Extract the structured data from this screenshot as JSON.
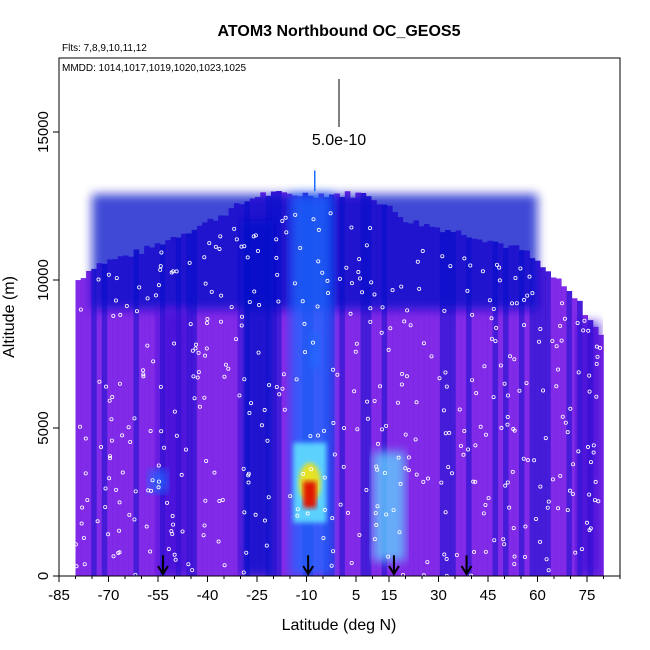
{
  "chart_data": {
    "type": "heatmap",
    "title": "ATOM3 Northbound OC_GEOS5",
    "flights_label": "Flts: 7,8,9,10,11,12",
    "dates_label": "MMDD: 1014,1017,1019,1020,1023,1025",
    "xlabel": "Latitude (deg N)",
    "ylabel": "Altitude (m)",
    "xlim": [
      -85,
      85
    ],
    "ylim": [
      0,
      17500
    ],
    "x_ticks": [
      -85,
      -70,
      -55,
      -40,
      -25,
      -10,
      5,
      15,
      30,
      45,
      60,
      75
    ],
    "y_ticks": [
      0,
      5000,
      10000,
      15000
    ],
    "scale_bar_label": "5.0e-10",
    "arrow_latitudes": [
      -53.5,
      -9.5,
      16.5,
      38.5
    ],
    "colors": {
      "background_curtain": "#7a1fe6",
      "low": "#3b10d6",
      "mid": "#0010c8",
      "high": "#1e6cff",
      "plume_edge": "#5fd8ff",
      "plume_core": "#ffe500",
      "plume_peak": "#e01000",
      "points": "#ffffff"
    },
    "ceiling_profile": [
      {
        "lat": -80,
        "alt": 10000
      },
      {
        "lat": -75,
        "alt": 10500
      },
      {
        "lat": -60,
        "alt": 11000
      },
      {
        "lat": -50,
        "alt": 11500
      },
      {
        "lat": -40,
        "alt": 12000
      },
      {
        "lat": -25,
        "alt": 12900
      },
      {
        "lat": 8,
        "alt": 12900
      },
      {
        "lat": 20,
        "alt": 12000
      },
      {
        "lat": 40,
        "alt": 11500
      },
      {
        "lat": 55,
        "alt": 11000
      },
      {
        "lat": 65,
        "alt": 10000
      },
      {
        "lat": 72,
        "alt": 9200
      },
      {
        "lat": 79,
        "alt": 8000
      }
    ],
    "features": [
      {
        "lat_min": -75,
        "lat_max": 60,
        "alt_min": 9000,
        "alt_max": 13000,
        "intensity": 0.45
      },
      {
        "lat_min": -15,
        "lat_max": -2,
        "alt_min": 0,
        "alt_max": 13000,
        "intensity": 0.55
      },
      {
        "lat_min": -30,
        "lat_max": -20,
        "alt_min": 0,
        "alt_max": 12000,
        "intensity": 0.45
      },
      {
        "lat_min": -55,
        "lat_max": -45,
        "alt_min": 0,
        "alt_max": 9000,
        "intensity": 0.35
      },
      {
        "lat_min": 72,
        "lat_max": 79,
        "alt_min": 0,
        "alt_max": 9000,
        "intensity": 0.35
      },
      {
        "lat_min": -14,
        "lat_max": -4,
        "alt_min": 1800,
        "alt_max": 4500,
        "intensity": 0.85
      },
      {
        "lat_min": 10,
        "lat_max": 20,
        "alt_min": 500,
        "alt_max": 4200,
        "intensity": 0.75
      },
      {
        "lat_min": -11,
        "lat_max": -7,
        "alt_min": 2300,
        "alt_max": 3200,
        "intensity": 1.0
      },
      {
        "lat_min": -9,
        "lat_max": -6,
        "alt_min": 7000,
        "alt_max": 8200,
        "intensity": 0.65
      },
      {
        "lat_min": -58,
        "lat_max": -52,
        "alt_min": 2800,
        "alt_max": 3600,
        "intensity": 0.6
      }
    ]
  }
}
